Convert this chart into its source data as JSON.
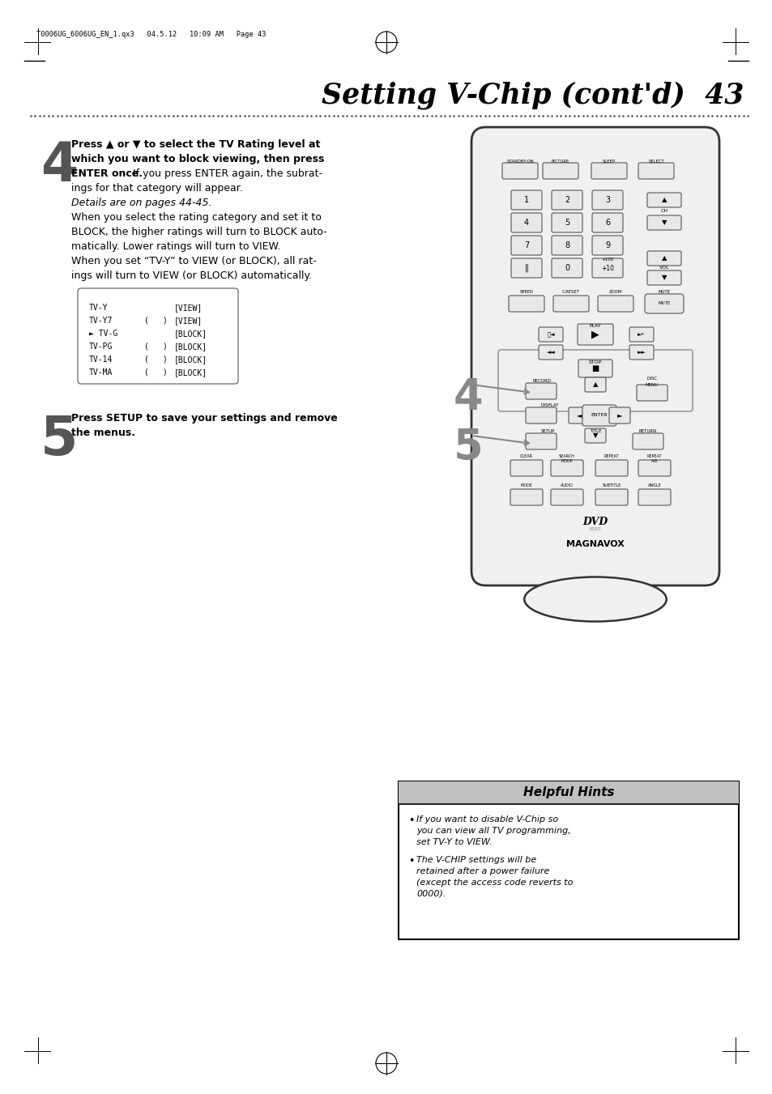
{
  "title": "Setting V-Chip (cont'd)  43",
  "header_meta": "T0006UG_6006UG_EN_1.qx3   04.5.12   10:09 AM   Page 43",
  "step4_bold_line1": "Press ▲ or ▼ to select the TV Rating level at",
  "step4_bold_line2": "which you want to block viewing, then press",
  "step4_bold_line3_bold": "ENTER once.",
  "step4_bold_line3_normal": " If you press ENTER again, the subrat-",
  "step4_line4": "ings for that category will appear.",
  "step4_italic": "Details are on pages 44-45.",
  "step4_para2a": "When you select the rating category and set it to",
  "step4_para2b": "BLOCK, the higher ratings will turn to BLOCK auto-",
  "step4_para2c": "matically. Lower ratings will turn to VIEW.",
  "step4_para3a": "When you set “TV-Y” to VIEW (or BLOCK), all rat-",
  "step4_para3b": "ings will turn to VIEW (or BLOCK) automatically.",
  "table_rows": [
    [
      "TV-Y",
      "",
      "",
      "[VIEW]"
    ],
    [
      "TV-Y7",
      "(",
      ")",
      "[VIEW]"
    ],
    [
      "► TV-G",
      "",
      "",
      "[BLOCK]"
    ],
    [
      "TV-PG",
      "(",
      ")",
      "[BLOCK]"
    ],
    [
      "TV-14",
      "(",
      ")",
      "[BLOCK]"
    ],
    [
      "TV-MA",
      "(",
      ")",
      "[BLOCK]"
    ]
  ],
  "step5_text1": "Press SETUP to save your settings and remove",
  "step5_text2": "the menus.",
  "hints_title": "Helpful Hints",
  "hints_bullet1_lines": [
    "If you want to disable V-Chip so",
    "you can view all TV programming,",
    "set TV-Y to VIEW."
  ],
  "hints_bullet2_lines": [
    "The V-CHIP settings will be",
    "retained after a power failure",
    "(except the access code reverts to",
    "0000)."
  ],
  "bg_color": "#ffffff",
  "text_color": "#000000",
  "hint_header_bg": "#c0c0c0",
  "remote_body_color": "#f0f0f0",
  "remote_border_color": "#333333",
  "remote_btn_color": "#e8e8e8",
  "remote_btn_border": "#555555"
}
